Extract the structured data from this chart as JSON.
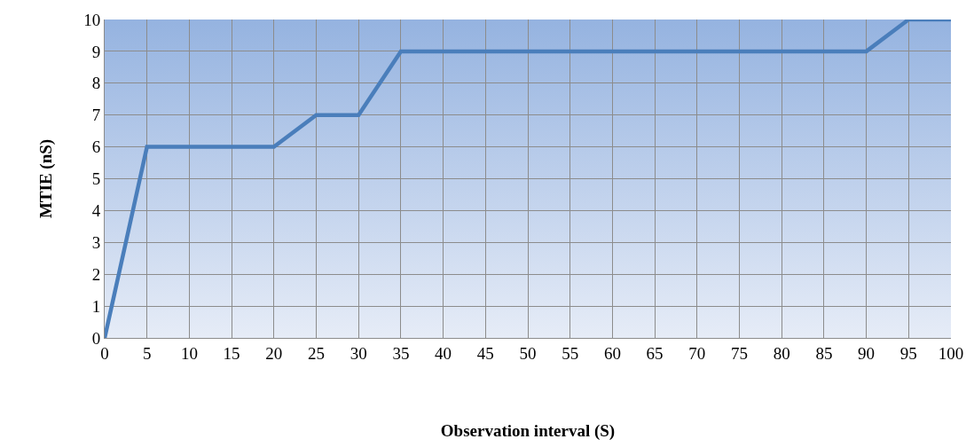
{
  "chart_data": {
    "type": "line",
    "xlabel": "Observation interval (S)",
    "ylabel": "MTIE (nS)",
    "x": [
      0,
      5,
      10,
      15,
      20,
      25,
      30,
      35,
      40,
      45,
      50,
      55,
      60,
      65,
      70,
      75,
      80,
      85,
      90,
      95,
      100
    ],
    "series": [
      {
        "color": "#4a7ebb",
        "values": [
          0,
          6,
          6,
          6,
          6,
          7,
          7,
          9,
          9,
          9,
          9,
          9,
          9,
          9,
          9,
          9,
          9,
          9,
          9,
          10,
          10
        ]
      }
    ],
    "xlim": [
      0,
      100
    ],
    "xticks": [
      0,
      5,
      10,
      15,
      20,
      25,
      30,
      35,
      40,
      45,
      50,
      55,
      60,
      65,
      70,
      75,
      80,
      85,
      90,
      95,
      100
    ],
    "ylim": [
      0,
      10
    ],
    "yticks": [
      0,
      1,
      2,
      3,
      4,
      5,
      6,
      7,
      8,
      9,
      10
    ],
    "grid": true,
    "marker": "none",
    "line_style": "solid"
  }
}
